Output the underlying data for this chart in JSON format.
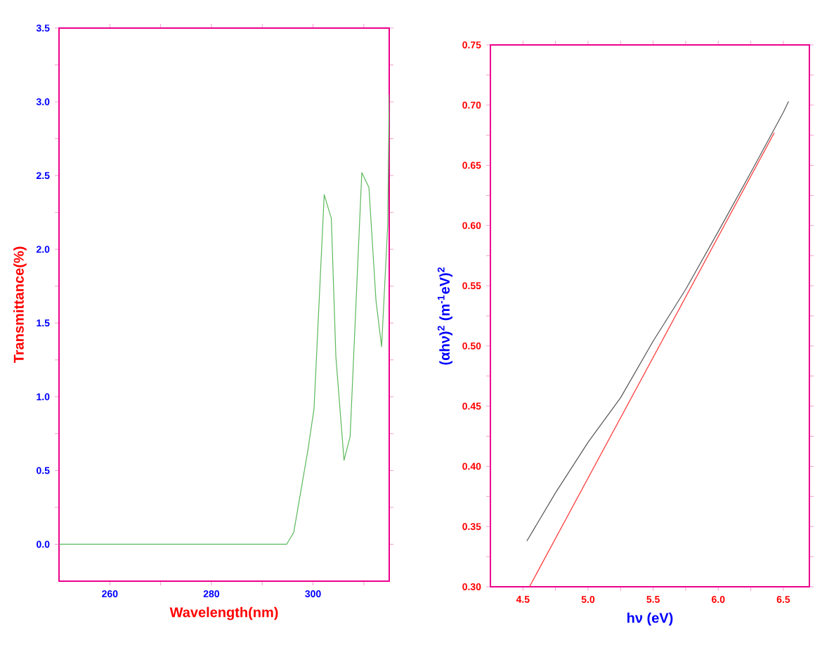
{
  "chart_data": [
    {
      "type": "line",
      "xlabel": "Wavelength(nm)",
      "ylabel": "Transmittance(%)",
      "xlim": [
        250,
        315
      ],
      "ylim": [
        -0.25,
        3.5
      ],
      "xticks": [
        260,
        {
          "value": 270,
          "label": null
        },
        280,
        {
          "value": 290,
          "label": null
        },
        300,
        {
          "value": 310,
          "label": null
        }
      ],
      "yticks": [
        {
          "value": 0,
          "label": "0.0"
        },
        {
          "value": 0.25,
          "label": null
        },
        0.5,
        {
          "value": 0.75,
          "label": null
        },
        {
          "value": 1,
          "label": "1.0"
        },
        {
          "value": 1.25,
          "label": null
        },
        1.5,
        {
          "value": 1.75,
          "label": null
        },
        {
          "value": 2,
          "label": "2.0"
        },
        {
          "value": 2.25,
          "label": null
        },
        2.5,
        {
          "value": 2.75,
          "label": null
        },
        {
          "value": 3,
          "label": "3.0"
        },
        {
          "value": 3.25,
          "label": null
        },
        3.5
      ],
      "marker": "none",
      "line_style": "solid",
      "series": [
        {
          "color": "#5cb85c",
          "x": [
            250,
            294.8,
            296.2,
            299.0,
            300.2,
            302.2,
            303.6,
            304.5,
            306.1,
            307.3,
            309.6,
            311.0,
            312.4,
            313.5,
            314.7,
            315
          ],
          "values": [
            0,
            0,
            0.08,
            0.64,
            0.92,
            2.37,
            2.21,
            1.27,
            0.57,
            0.73,
            2.52,
            2.42,
            1.65,
            1.34,
            2.16,
            3.05
          ]
        }
      ]
    },
    {
      "type": "line",
      "xlabel": "hν (eV)",
      "ylabel": "(αhν)$^{2}$ (m$^{-1}$eV)$^{2}$",
      "xlim": [
        4.25,
        6.7
      ],
      "ylim": [
        0.3,
        0.75
      ],
      "xticks": [
        4.5,
        {
          "value": 4.75,
          "label": null
        },
        {
          "value": 5,
          "label": "5.0"
        },
        {
          "value": 5.25,
          "label": null
        },
        5.5,
        {
          "value": 5.75,
          "label": null
        },
        {
          "value": 6,
          "label": "6.0"
        },
        {
          "value": 6.25,
          "label": null
        },
        6.5
      ],
      "yticks": [
        {
          "value": 0.3,
          "label": "0.30"
        },
        {
          "value": 0.325,
          "label": null
        },
        0.35,
        {
          "value": 0.375,
          "label": null
        },
        {
          "value": 0.4,
          "label": "0.40"
        },
        {
          "value": 0.425,
          "label": null
        },
        0.45,
        {
          "value": 0.475,
          "label": null
        },
        {
          "value": 0.5,
          "label": "0.50"
        },
        {
          "value": 0.525,
          "label": null
        },
        0.55,
        {
          "value": 0.575,
          "label": null
        },
        {
          "value": 0.6,
          "label": "0.60"
        },
        {
          "value": 0.625,
          "label": null
        },
        0.65,
        {
          "value": 0.675,
          "label": null
        },
        {
          "value": 0.7,
          "label": "0.70"
        },
        {
          "value": 0.725,
          "label": null
        },
        0.75
      ],
      "marker": "none",
      "line_style": "solid",
      "series": [
        {
          "color": "#555555",
          "x": [
            4.53,
            4.75,
            5.0,
            5.25,
            5.5,
            5.75,
            6.0,
            6.25,
            6.5,
            6.54
          ],
          "values": [
            0.338,
            0.378,
            0.42,
            0.457,
            0.504,
            0.547,
            0.595,
            0.644,
            0.694,
            0.703
          ]
        },
        {
          "color": "#ff3030",
          "x": [
            4.55,
            6.43
          ],
          "values": [
            0.3,
            0.677
          ]
        }
      ]
    }
  ]
}
